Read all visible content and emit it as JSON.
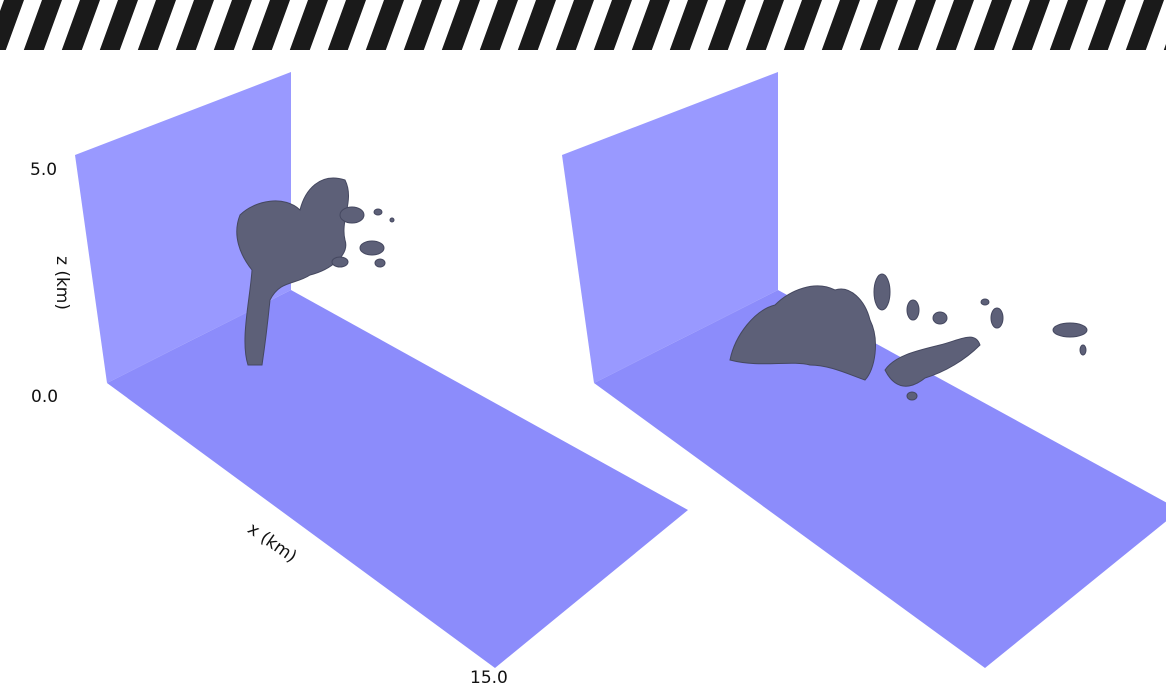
{
  "axes": {
    "z_label": "z (km)",
    "z_top": "5.0",
    "z_bottom": "0.0",
    "x_label": "x (km)",
    "x_end": "15.0"
  }
}
